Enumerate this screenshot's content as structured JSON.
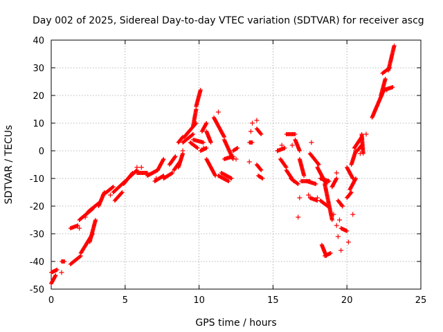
{
  "chart_data": {
    "type": "scatter",
    "title": "Day 002 of 2025, Sidereal Day-to-day VTEC variation (SDTVAR) for receiver ascg",
    "xlabel": "GPS time / hours",
    "ylabel": "SDTVAR / TECUs",
    "xlim": [
      0,
      25
    ],
    "ylim": [
      -50,
      40
    ],
    "x_ticks": [
      0,
      5,
      10,
      15,
      20,
      25
    ],
    "y_ticks": [
      -50,
      -40,
      -30,
      -20,
      -10,
      0,
      10,
      20,
      30,
      40
    ],
    "x_tick_labels": [
      "0",
      "5",
      "10",
      "15",
      "20",
      "25"
    ],
    "y_tick_labels": [
      "-50",
      "-40",
      "-30",
      "-20",
      "-10",
      "0",
      "10",
      "20",
      "30",
      "40"
    ],
    "grid": true,
    "marker": "+",
    "marker_color": "#ff0000",
    "series": [
      {
        "name": "SDTVAR",
        "segments": [
          [
            [
              0.0,
              -48
            ],
            [
              0.3,
              -45
            ]
          ],
          [
            [
              0.0,
              -44
            ],
            [
              0.4,
              -43
            ]
          ],
          [
            [
              0.7,
              -40
            ],
            [
              0.9,
              -40
            ]
          ],
          [
            [
              1.3,
              -41
            ],
            [
              2.0,
              -38
            ]
          ],
          [
            [
              2.0,
              -37
            ],
            [
              2.8,
              -30
            ]
          ],
          [
            [
              2.6,
              -33
            ],
            [
              3.0,
              -25
            ]
          ],
          [
            [
              1.3,
              -28
            ],
            [
              1.8,
              -27
            ]
          ],
          [
            [
              1.9,
              -25
            ],
            [
              2.8,
              -21
            ]
          ],
          [
            [
              2.5,
              -22
            ],
            [
              3.2,
              -19
            ]
          ],
          [
            [
              3.2,
              -20
            ],
            [
              3.6,
              -15
            ]
          ],
          [
            [
              3.5,
              -16
            ],
            [
              4.2,
              -13
            ]
          ],
          [
            [
              4.3,
              -18
            ],
            [
              4.8,
              -15
            ]
          ],
          [
            [
              4.2,
              -15
            ],
            [
              5.0,
              -11
            ]
          ],
          [
            [
              4.9,
              -12
            ],
            [
              5.5,
              -8
            ]
          ],
          [
            [
              5.2,
              -10
            ],
            [
              5.8,
              -7
            ]
          ],
          [
            [
              5.8,
              -8
            ],
            [
              6.5,
              -8
            ]
          ],
          [
            [
              6.5,
              -9
            ],
            [
              7.2,
              -7
            ]
          ],
          [
            [
              7.0,
              -11
            ],
            [
              7.6,
              -9
            ]
          ],
          [
            [
              7.2,
              -7
            ],
            [
              7.6,
              -3
            ]
          ],
          [
            [
              7.6,
              -10
            ],
            [
              8.2,
              -8
            ]
          ],
          [
            [
              8.0,
              -5
            ],
            [
              8.4,
              -2
            ]
          ],
          [
            [
              8.3,
              -7
            ],
            [
              8.7,
              -4
            ]
          ],
          [
            [
              8.6,
              -6
            ],
            [
              8.9,
              -1
            ]
          ],
          [
            [
              8.6,
              3
            ],
            [
              8.9,
              5
            ]
          ],
          [
            [
              8.9,
              3
            ],
            [
              9.6,
              6
            ]
          ],
          [
            [
              9.4,
              3
            ],
            [
              9.9,
              1
            ]
          ],
          [
            [
              9.0,
              5
            ],
            [
              9.8,
              10
            ]
          ],
          [
            [
              9.6,
              9
            ],
            [
              9.8,
              15
            ]
          ],
          [
            [
              9.8,
              16
            ],
            [
              10.1,
              22
            ]
          ],
          [
            [
              9.6,
              4
            ],
            [
              10.3,
              3
            ]
          ],
          [
            [
              10.2,
              7
            ],
            [
              10.5,
              10
            ]
          ],
          [
            [
              10.5,
              7
            ],
            [
              10.8,
              3
            ]
          ],
          [
            [
              10.1,
              0
            ],
            [
              10.5,
              1
            ]
          ],
          [
            [
              10.5,
              -3
            ],
            [
              11.1,
              -9
            ]
          ],
          [
            [
              11.0,
              12
            ],
            [
              11.7,
              5
            ]
          ],
          [
            [
              11.7,
              4
            ],
            [
              12.3,
              -3
            ]
          ],
          [
            [
              11.3,
              -9
            ],
            [
              12.0,
              -11
            ]
          ],
          [
            [
              11.5,
              -8
            ],
            [
              12.2,
              -10
            ]
          ],
          [
            [
              11.7,
              -3
            ],
            [
              12.3,
              -2
            ]
          ],
          [
            [
              12.3,
              0
            ],
            [
              12.6,
              1
            ]
          ],
          [
            [
              13.4,
              3
            ],
            [
              13.6,
              3
            ]
          ],
          [
            [
              13.9,
              8
            ],
            [
              14.2,
              6
            ]
          ],
          [
            [
              13.9,
              -5
            ],
            [
              14.2,
              -7
            ]
          ],
          [
            [
              14.0,
              -9
            ],
            [
              14.3,
              -10
            ]
          ],
          [
            [
              15.3,
              0
            ],
            [
              15.8,
              1
            ]
          ],
          [
            [
              15.5,
              -3
            ],
            [
              15.9,
              -6
            ]
          ],
          [
            [
              15.9,
              -7
            ],
            [
              16.4,
              -11
            ]
          ],
          [
            [
              16.2,
              -10
            ],
            [
              16.7,
              -12
            ]
          ],
          [
            [
              15.9,
              6
            ],
            [
              16.5,
              6
            ]
          ],
          [
            [
              16.5,
              4
            ],
            [
              16.8,
              0
            ]
          ],
          [
            [
              16.8,
              -3
            ],
            [
              17.1,
              -9
            ]
          ],
          [
            [
              16.9,
              -11
            ],
            [
              17.5,
              -11
            ]
          ],
          [
            [
              17.3,
              -11
            ],
            [
              17.9,
              -12
            ]
          ],
          [
            [
              17.5,
              -17
            ],
            [
              18.0,
              -18
            ]
          ],
          [
            [
              17.5,
              -1
            ],
            [
              18.1,
              -5
            ]
          ],
          [
            [
              18.0,
              -6
            ],
            [
              18.6,
              -12
            ]
          ],
          [
            [
              18.2,
              -10
            ],
            [
              18.8,
              -11
            ]
          ],
          [
            [
              18.2,
              -18
            ],
            [
              18.7,
              -20
            ]
          ],
          [
            [
              18.5,
              -12
            ],
            [
              19.0,
              -25
            ]
          ],
          [
            [
              18.3,
              -34
            ],
            [
              18.6,
              -38
            ]
          ],
          [
            [
              18.5,
              -38
            ],
            [
              18.9,
              -37
            ]
          ],
          [
            [
              19.0,
              -13
            ],
            [
              19.3,
              -10
            ]
          ],
          [
            [
              19.4,
              -18
            ],
            [
              19.7,
              -20
            ]
          ],
          [
            [
              19.6,
              -28
            ],
            [
              20.0,
              -29
            ]
          ],
          [
            [
              20.0,
              -17
            ],
            [
              20.3,
              -15
            ]
          ],
          [
            [
              20.0,
              -6
            ],
            [
              20.4,
              -10
            ]
          ],
          [
            [
              20.2,
              -14
            ],
            [
              20.6,
              -10
            ]
          ],
          [
            [
              20.3,
              -5
            ],
            [
              20.6,
              0
            ]
          ],
          [
            [
              20.5,
              1
            ],
            [
              21.0,
              5
            ]
          ],
          [
            [
              21.0,
              6
            ],
            [
              21.1,
              -1
            ]
          ],
          [
            [
              20.7,
              0
            ],
            [
              21.0,
              2
            ]
          ],
          [
            [
              21.7,
              12
            ],
            [
              22.5,
              22
            ]
          ],
          [
            [
              22.3,
              20
            ],
            [
              22.6,
              26
            ]
          ],
          [
            [
              22.4,
              28
            ],
            [
              22.9,
              30
            ]
          ],
          [
            [
              22.8,
              29
            ],
            [
              23.2,
              38
            ]
          ],
          [
            [
              22.5,
              22
            ],
            [
              23.1,
              23
            ]
          ]
        ],
        "scatter_points": [
          [
            0.7,
            -44
          ],
          [
            1.9,
            -28
          ],
          [
            2.3,
            -24
          ],
          [
            4.0,
            -16
          ],
          [
            5.8,
            -6
          ],
          [
            6.1,
            -6
          ],
          [
            7.1,
            -10
          ],
          [
            8.9,
            0
          ],
          [
            10.3,
            1
          ],
          [
            11.3,
            14
          ],
          [
            12.5,
            -3
          ],
          [
            13.4,
            -4
          ],
          [
            13.5,
            7
          ],
          [
            13.6,
            10
          ],
          [
            13.9,
            11
          ],
          [
            15.3,
            0
          ],
          [
            15.6,
            2
          ],
          [
            16.3,
            2
          ],
          [
            16.7,
            -24
          ],
          [
            16.8,
            -17
          ],
          [
            17.4,
            -16
          ],
          [
            17.6,
            3
          ],
          [
            18.0,
            -17
          ],
          [
            19.0,
            -13
          ],
          [
            19.1,
            -23
          ],
          [
            19.3,
            -8
          ],
          [
            19.3,
            -27
          ],
          [
            19.4,
            -31
          ],
          [
            19.5,
            -25
          ],
          [
            19.6,
            -36
          ],
          [
            19.7,
            -20
          ],
          [
            20.1,
            -33
          ],
          [
            20.4,
            -23
          ],
          [
            20.6,
            0
          ],
          [
            20.9,
            -1
          ],
          [
            21.3,
            6
          ],
          [
            22.7,
            22
          ]
        ]
      }
    ]
  }
}
